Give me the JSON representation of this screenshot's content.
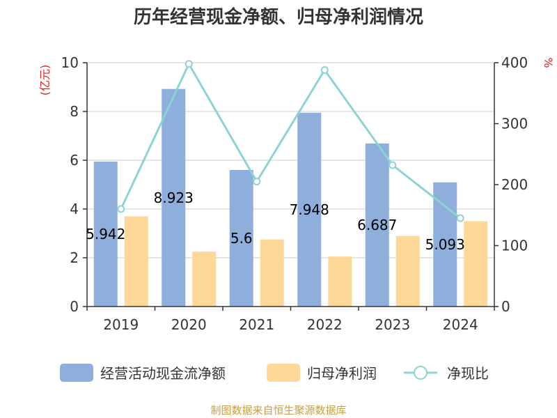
{
  "chart_data": {
    "type": "bar",
    "title": "历年经营现金净额、归母净利润情况",
    "categories": [
      "2019",
      "2020",
      "2021",
      "2022",
      "2023",
      "2024"
    ],
    "y_left_unit": "(亿元)",
    "y_right_unit": "%",
    "y_left_ticks": [
      "0",
      "2",
      "4",
      "6",
      "8",
      "10"
    ],
    "y_right_ticks": [
      "0",
      "100",
      "200",
      "300",
      "400"
    ],
    "ylim_left": [
      0,
      10
    ],
    "ylim_right": [
      0,
      400
    ],
    "grid": true,
    "legend_position": "bottom",
    "series": [
      {
        "name": "经营活动现金流净额",
        "type": "bar",
        "axis": "left",
        "color": "#8eaedb",
        "values": [
          5.942,
          8.923,
          5.6,
          7.948,
          6.687,
          5.093
        ],
        "labels": [
          "5.942",
          "8.923",
          "5.6",
          "7.948",
          "6.687",
          "5.093"
        ]
      },
      {
        "name": "归母净利润",
        "type": "bar",
        "axis": "left",
        "color": "#fdd898",
        "values": [
          3.7,
          2.25,
          2.75,
          2.05,
          2.9,
          3.5
        ]
      },
      {
        "name": "净现比",
        "type": "line",
        "axis": "right",
        "color": "#8dd3d6",
        "values": [
          160,
          398,
          205,
          388,
          232,
          145
        ]
      }
    ]
  },
  "source": "制图数据来自恒生聚源数据库",
  "colors": {
    "unit": "#e02020",
    "source": "#c8a040",
    "axis": "#333333",
    "grid": "#cccccc"
  }
}
